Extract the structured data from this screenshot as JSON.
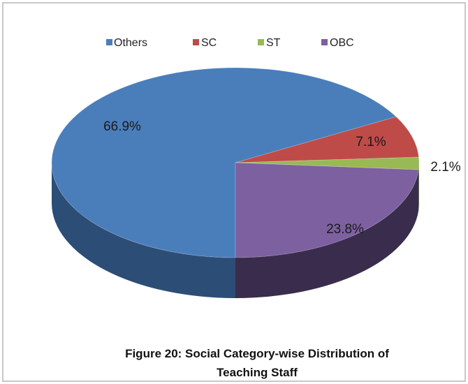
{
  "chart_data": {
    "type": "pie",
    "style": "3d",
    "categories": [
      "Others",
      "SC",
      "ST",
      "OBC"
    ],
    "values": [
      66.9,
      7.1,
      2.1,
      23.8
    ],
    "labels": [
      "66.9%",
      "7.1%",
      "2.1%",
      "23.8%"
    ],
    "colors": [
      "#4A7EBB",
      "#BE4B48",
      "#98B954",
      "#7D60A0"
    ],
    "side_colors": [
      "#2C4D76",
      "#7A2F2D",
      "#5F7534",
      "#3A2C4C"
    ],
    "legend_position": "top",
    "caption_lines": [
      "Figure 20:  Social Category-wise Distribution of",
      "Teaching Staff"
    ]
  }
}
